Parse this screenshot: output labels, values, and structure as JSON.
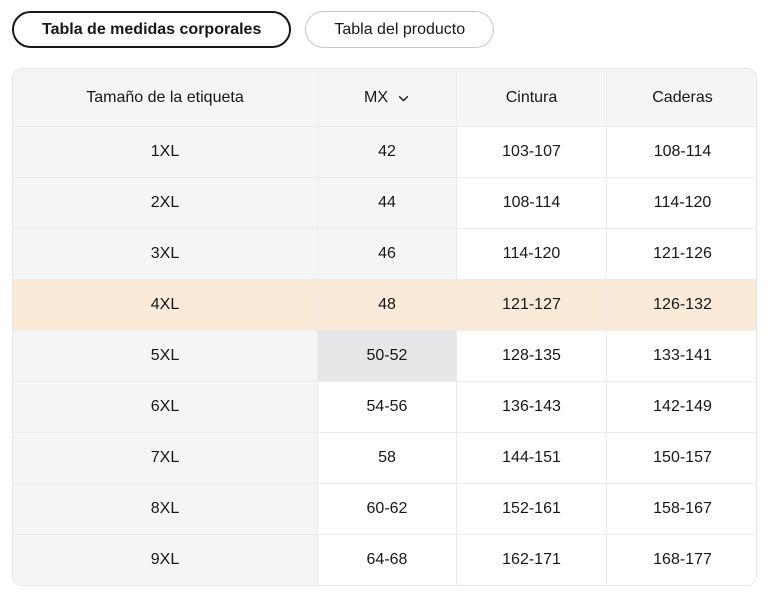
{
  "tabs": [
    {
      "label": "Tabla de medidas corporales",
      "active": true
    },
    {
      "label": "Tabla del producto",
      "active": false
    }
  ],
  "table": {
    "headers": {
      "size": "Tamaño de la etiqueta",
      "region": "MX",
      "waist": "Cintura",
      "hips": "Caderas"
    },
    "rows": [
      {
        "size": "1XL",
        "mx": "42",
        "waist": "103-107",
        "hips": "108-114",
        "mx_bg": "gray"
      },
      {
        "size": "2XL",
        "mx": "44",
        "waist": "108-114",
        "hips": "114-120",
        "mx_bg": "gray"
      },
      {
        "size": "3XL",
        "mx": "46",
        "waist": "114-120",
        "hips": "121-126",
        "mx_bg": "gray"
      },
      {
        "size": "4XL",
        "mx": "48",
        "waist": "121-127",
        "hips": "126-132",
        "highlight": true
      },
      {
        "size": "5XL",
        "mx": "50-52",
        "waist": "128-135",
        "hips": "133-141",
        "mx_bg": "selected"
      },
      {
        "size": "6XL",
        "mx": "54-56",
        "waist": "136-143",
        "hips": "142-149",
        "mx_bg": "white"
      },
      {
        "size": "7XL",
        "mx": "58",
        "waist": "144-151",
        "hips": "150-157",
        "mx_bg": "white"
      },
      {
        "size": "8XL",
        "mx": "60-62",
        "waist": "152-161",
        "hips": "158-167",
        "mx_bg": "white"
      },
      {
        "size": "9XL",
        "mx": "64-68",
        "waist": "162-171",
        "hips": "168-177",
        "mx_bg": "white"
      }
    ],
    "highlighted_size": "4XL",
    "selected_mx_size": "5XL"
  },
  "colors": {
    "text": "#15171a",
    "header_bg": "#f5f5f6",
    "gray_col": "#f5f5f6",
    "selected_cell": "#e7e7e9",
    "highlight_row": "#fcead9",
    "divider": "#ececef",
    "border": "#e6e6e9",
    "active_tab_border": "#15171a",
    "inactive_tab_border": "#c6c6cc"
  },
  "icons": {
    "region_dropdown": "chevron-down-icon"
  }
}
